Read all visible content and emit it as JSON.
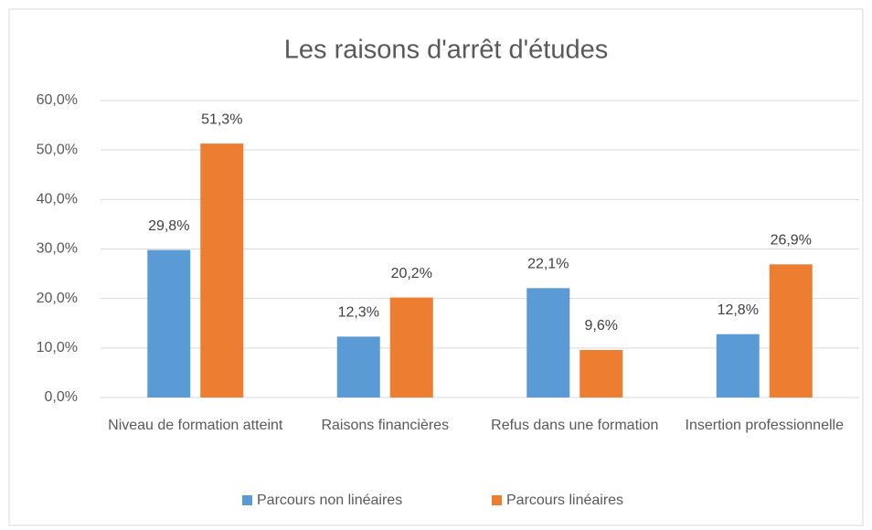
{
  "chart_data": {
    "type": "bar",
    "title": "Les raisons d'arrêt d'études",
    "categories": [
      "Niveau de formation atteint",
      "Raisons financières",
      "Refus dans une formation",
      "Insertion professionnelle"
    ],
    "series": [
      {
        "name": "Parcours non linéaires",
        "color": "#5b9bd5",
        "values": [
          29.8,
          12.3,
          22.1,
          12.8
        ],
        "value_labels": [
          "29,8%",
          "12,3%",
          "22,1%",
          "12,8%"
        ]
      },
      {
        "name": "Parcours linéaires",
        "color": "#ed7d31",
        "values": [
          51.3,
          20.2,
          9.6,
          26.9
        ],
        "value_labels": [
          "51,3%",
          "20,2%",
          "9,6%",
          "26,9%"
        ]
      }
    ],
    "ylim": [
      0,
      60
    ],
    "yticks": [
      {
        "value": 0,
        "label": "0,0%"
      },
      {
        "value": 10,
        "label": "10,0%"
      },
      {
        "value": 20,
        "label": "20,0%"
      },
      {
        "value": 30,
        "label": "30,0%"
      },
      {
        "value": 40,
        "label": "40,0%"
      },
      {
        "value": 50,
        "label": "50,0%"
      },
      {
        "value": 60,
        "label": "60,0%"
      }
    ],
    "grid": true,
    "legend": "bottom"
  }
}
